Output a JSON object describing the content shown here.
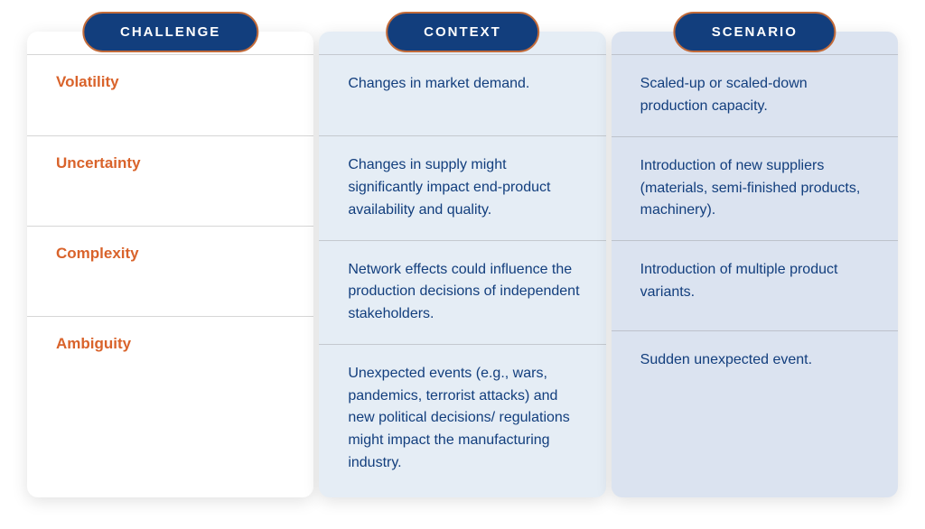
{
  "headers": {
    "challenge": "CHALLENGE",
    "context": "CONTEXT",
    "scenario": "SCENARIO"
  },
  "rows": [
    {
      "challenge": "Volatility",
      "context": "Changes in market demand.",
      "scenario": "Scaled-up or scaled-down production capacity."
    },
    {
      "challenge": "Uncertainty",
      "context": "Changes in supply might significantly impact end-product availability and quality.",
      "scenario": "Introduction of new suppliers (materials, semi-finished products, machinery)."
    },
    {
      "challenge": "Complexity",
      "context": "Network effects could influence the production decisions of independent stakeholders.",
      "scenario": "Introduction of multiple product variants."
    },
    {
      "challenge": "Ambiguity",
      "context": "Unexpected events (e.g., wars, pandemics, terrorist attacks) and new political decisions/ regulations might impact the manufacturing industry.",
      "scenario": "Sudden unexpected event."
    }
  ],
  "colors": {
    "pill_bg": "#123e7d",
    "pill_border": "#c26b3a",
    "challenge_text": "#d9632b",
    "body_text": "#123e7d",
    "col_challenge_bg": "#ffffff",
    "col_context_bg": "#e5edf5",
    "col_scenario_bg": "#dbe3f0"
  },
  "type": "table"
}
